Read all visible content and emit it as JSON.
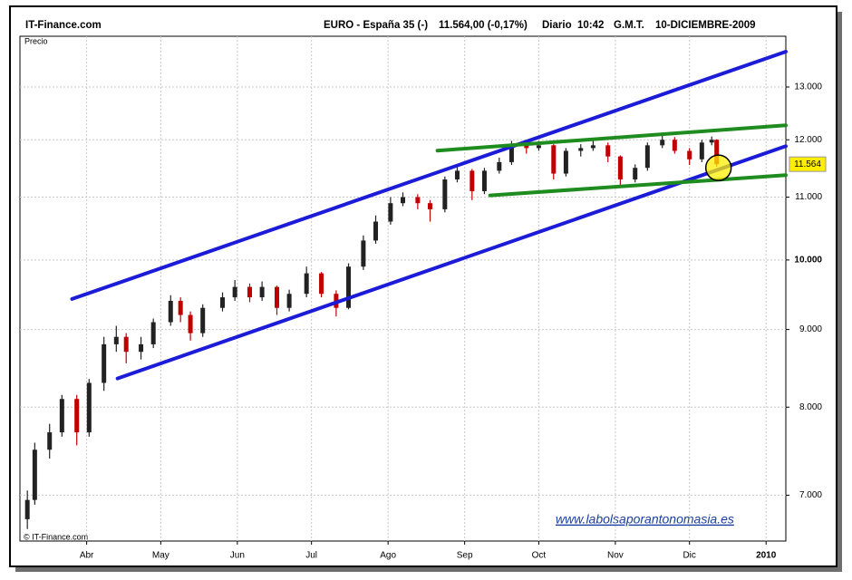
{
  "chart_data": {
    "type": "candlestick",
    "site": "IT-Finance.com",
    "instrument": "EURO - España 35 (-)",
    "quote": "11.564,00 (-0,17%)",
    "period": "Diario",
    "time": "10:42",
    "timezone": "G.M.T.",
    "date": "10-DICIEMBRE-2009",
    "y_label": "Precio",
    "copyright": "© IT-Finance.com",
    "watermark": "www.labolsaporantonomasia.es",
    "log_scale": true,
    "grid": true,
    "up_color": "#222222",
    "down_color": "#c00000",
    "xlim": [
      4,
      314
    ],
    "xticks": [
      {
        "value": 31,
        "label": "Abr"
      },
      {
        "value": 61,
        "label": "May"
      },
      {
        "value": 92,
        "label": "Jun"
      },
      {
        "value": 122,
        "label": "Jul"
      },
      {
        "value": 153,
        "label": "Ago"
      },
      {
        "value": 184,
        "label": "Sep"
      },
      {
        "value": 214,
        "label": "Oct"
      },
      {
        "value": 245,
        "label": "Nov"
      },
      {
        "value": 275,
        "label": "Dic"
      },
      {
        "value": 306,
        "label": "2010"
      }
    ],
    "ylim": [
      6530,
      14040
    ],
    "yticks": [
      {
        "value": 7000,
        "label": "7.000"
      },
      {
        "value": 8000,
        "label": "8.000"
      },
      {
        "value": 9000,
        "label": "9.000"
      },
      {
        "value": 10000,
        "label": "10.000"
      },
      {
        "value": 11000,
        "label": "11.000"
      },
      {
        "value": 12000,
        "label": "12.000"
      },
      {
        "value": 13000,
        "label": "13.000"
      }
    ],
    "x": [
      7,
      10,
      16,
      21,
      27,
      32,
      38,
      43,
      47,
      53,
      58,
      65,
      69,
      73,
      78,
      86,
      91,
      97,
      102,
      108,
      113,
      120,
      126,
      132,
      137,
      143,
      148,
      154,
      159,
      165,
      170,
      176,
      181,
      187,
      192,
      198,
      203,
      209,
      214,
      220,
      225,
      231,
      236,
      242,
      247,
      253,
      258,
      264,
      269,
      275,
      280,
      284,
      286
    ],
    "open": [
      6750,
      6950,
      7500,
      7700,
      8100,
      7700,
      8300,
      8800,
      8900,
      8700,
      8800,
      9100,
      9400,
      9200,
      8950,
      9300,
      9450,
      9600,
      9450,
      9600,
      9300,
      9500,
      9800,
      9500,
      9300,
      9900,
      10300,
      10600,
      10900,
      11000,
      10900,
      10800,
      11300,
      11450,
      11100,
      11450,
      11600,
      11900,
      11850,
      11900,
      11400,
      11800,
      11850,
      11900,
      11700,
      11300,
      11500,
      11900,
      12000,
      11800,
      11650,
      11950,
      12000
    ],
    "high": [
      7050,
      7580,
      7800,
      8150,
      8150,
      8350,
      8900,
      9050,
      8950,
      8900,
      9150,
      9480,
      9450,
      9250,
      9350,
      9520,
      9700,
      9650,
      9680,
      9620,
      9560,
      9900,
      9820,
      9550,
      9950,
      10380,
      10700,
      11000,
      11080,
      11050,
      10950,
      11350,
      11520,
      11480,
      11500,
      11680,
      11980,
      11960,
      11980,
      11920,
      11850,
      11920,
      11980,
      11950,
      11720,
      11560,
      11950,
      12080,
      12050,
      11850,
      12000,
      12060,
      12010
    ],
    "low": [
      6650,
      6900,
      7400,
      7650,
      7550,
      7650,
      8200,
      8700,
      8550,
      8600,
      8750,
      9050,
      9100,
      8850,
      8900,
      9250,
      9400,
      9380,
      9400,
      9200,
      9250,
      9450,
      9450,
      9180,
      9280,
      9850,
      10250,
      10550,
      10850,
      10800,
      10600,
      10750,
      11250,
      10950,
      11050,
      11400,
      11550,
      11750,
      11800,
      11300,
      11350,
      11700,
      11800,
      11600,
      11200,
      11250,
      11450,
      11850,
      11750,
      11550,
      11600,
      11900,
      11520
    ],
    "close": [
      6950,
      7500,
      7700,
      8100,
      7700,
      8300,
      8800,
      8900,
      8700,
      8800,
      9100,
      9400,
      9200,
      8950,
      9300,
      9450,
      9600,
      9450,
      9600,
      9300,
      9500,
      9800,
      9500,
      9300,
      9900,
      10300,
      10600,
      10900,
      11000,
      10900,
      10800,
      11300,
      11450,
      11100,
      11450,
      11600,
      11900,
      11850,
      11900,
      11400,
      11800,
      11850,
      11900,
      11700,
      11300,
      11500,
      11900,
      12000,
      11800,
      11650,
      11950,
      12000,
      11564
    ],
    "last_price": {
      "value": 11564,
      "label": "11.564"
    },
    "trend_lines": [
      {
        "color": "#1c1cd8",
        "x": [
          25.1,
          314
        ],
        "y": [
          9426,
          13716
        ]
      },
      {
        "color": "#1c1cd8",
        "x": [
          43.5,
          314
        ],
        "y": [
          8356,
          11885
        ]
      },
      {
        "color": "#1f8c1f",
        "x": [
          173,
          314
        ],
        "y": [
          11804,
          12267
        ]
      },
      {
        "color": "#1f8c1f",
        "x": [
          194.3,
          314
        ],
        "y": [
          11030,
          11373
        ]
      }
    ]
  }
}
